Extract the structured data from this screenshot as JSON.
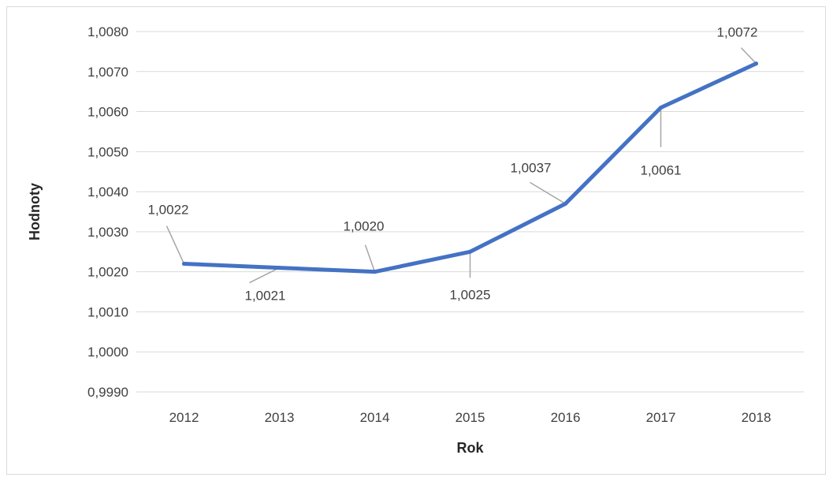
{
  "chart_data": {
    "type": "line",
    "title": "",
    "xlabel": "Rok",
    "ylabel": "Hodnoty",
    "categories": [
      "2012",
      "2013",
      "2014",
      "2015",
      "2016",
      "2017",
      "2018"
    ],
    "series": [
      {
        "values": [
          1.0022,
          1.0021,
          1.002,
          1.0025,
          1.0037,
          1.0061,
          1.0072
        ],
        "data_labels": [
          "1,0022",
          "1,0021",
          "1,0020",
          "1,0025",
          "1,0037",
          "1,0061",
          "1,0072"
        ],
        "color": "#4472C4"
      }
    ],
    "ylim": [
      0.999,
      1.008
    ],
    "yticks": [
      0.999,
      1.0,
      1.001,
      1.002,
      1.003,
      1.004,
      1.005,
      1.006,
      1.007,
      1.008
    ],
    "ytick_labels": [
      "0,9990",
      "1,0000",
      "1,0010",
      "1,0020",
      "1,0030",
      "1,0040",
      "1,0050",
      "1,0060",
      "1,0070",
      "1,0080"
    ],
    "grid": true,
    "gridline_color": "#d9d9d9",
    "leader_line_color": "#a6a6a6",
    "legend": "none"
  }
}
